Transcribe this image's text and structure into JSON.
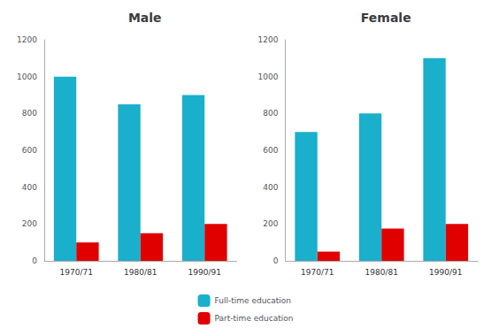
{
  "chart_data": [
    {
      "type": "bar",
      "title": "Male",
      "categories": [
        "1970/71",
        "1980/81",
        "1990/91"
      ],
      "series": [
        {
          "name": "Full-time education",
          "color": "#1AAFCB",
          "values": [
            1000,
            850,
            900
          ]
        },
        {
          "name": "Part-time education",
          "color": "#E00000",
          "values": [
            100,
            150,
            200
          ]
        }
      ],
      "ylim": [
        0,
        1200
      ],
      "yticks": [
        0,
        200,
        400,
        600,
        800,
        1000,
        1200
      ],
      "grid": false,
      "legend": "bottom"
    },
    {
      "type": "bar",
      "title": "Female",
      "categories": [
        "1970/71",
        "1980/81",
        "1990/91"
      ],
      "series": [
        {
          "name": "Full-time education",
          "color": "#1AAFCB",
          "values": [
            700,
            800,
            1100
          ]
        },
        {
          "name": "Part-time education",
          "color": "#E00000",
          "values": [
            50,
            175,
            200
          ]
        }
      ],
      "ylim": [
        0,
        1200
      ],
      "yticks": [
        0,
        200,
        400,
        600,
        800,
        1000,
        1200
      ],
      "grid": false,
      "legend": "bottom"
    }
  ]
}
